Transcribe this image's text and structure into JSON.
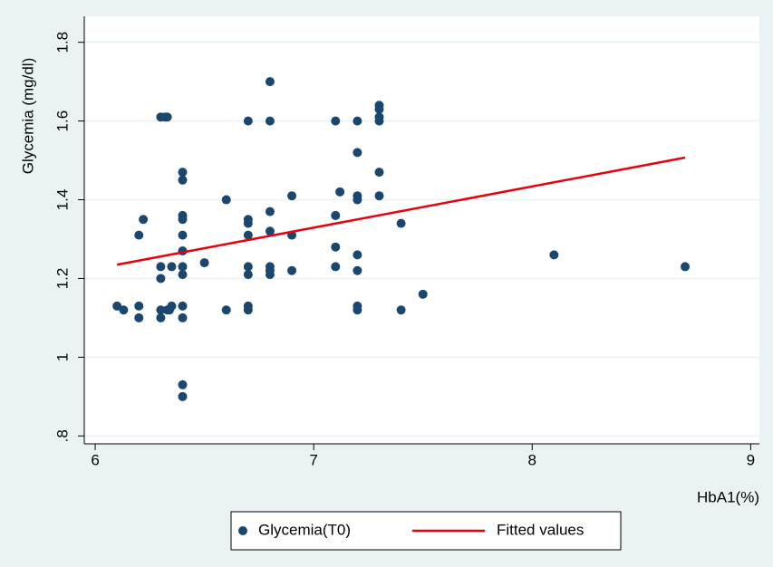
{
  "chart_data": {
    "type": "scatter",
    "xlabel": "HbA1(%)",
    "ylabel": "Glycemia (mg/dl)",
    "xlim": [
      5.95,
      9.04
    ],
    "ylim": [
      0.78,
      1.866
    ],
    "xticks": [
      6,
      7,
      8,
      9
    ],
    "yticks": [
      {
        "value": 0.8,
        "label": ".8"
      },
      1,
      1.2,
      1.4,
      1.6,
      1.8
    ],
    "grid": true,
    "legend": "bottom",
    "series": [
      {
        "name": "Glycemia(T0)",
        "type": "scatter",
        "color": "#1a476f",
        "x": [
          6.1,
          6.13,
          6.2,
          6.2,
          6.2,
          6.22,
          6.3,
          6.32,
          6.33,
          6.3,
          6.3,
          6.3,
          6.3,
          6.33,
          6.35,
          6.35,
          6.34,
          6.4,
          6.4,
          6.4,
          6.4,
          6.4,
          6.4,
          6.4,
          6.4,
          6.4,
          6.4,
          6.4,
          6.4,
          6.5,
          6.6,
          6.6,
          6.7,
          6.7,
          6.7,
          6.7,
          6.7,
          6.7,
          6.7,
          6.7,
          6.8,
          6.8,
          6.8,
          6.8,
          6.8,
          6.8,
          6.8,
          6.9,
          6.9,
          6.9,
          7.1,
          7.1,
          7.1,
          7.1,
          7.12,
          7.2,
          7.2,
          7.2,
          7.2,
          7.2,
          7.2,
          7.2,
          7.2,
          7.3,
          7.3,
          7.3,
          7.3,
          7.3,
          7.3,
          7.4,
          7.4,
          7.5,
          8.1,
          8.7
        ],
        "values": [
          1.13,
          1.12,
          1.31,
          1.13,
          1.1,
          1.35,
          1.61,
          1.61,
          1.61,
          1.23,
          1.2,
          1.12,
          1.1,
          1.12,
          1.13,
          1.23,
          1.12,
          1.47,
          1.45,
          1.36,
          1.35,
          1.31,
          1.27,
          1.23,
          1.21,
          1.13,
          1.1,
          0.93,
          0.9,
          1.24,
          1.4,
          1.12,
          1.6,
          1.35,
          1.34,
          1.31,
          1.23,
          1.21,
          1.13,
          1.12,
          1.7,
          1.6,
          1.37,
          1.32,
          1.23,
          1.22,
          1.21,
          1.41,
          1.31,
          1.22,
          1.6,
          1.36,
          1.28,
          1.23,
          1.42,
          1.6,
          1.52,
          1.41,
          1.4,
          1.26,
          1.22,
          1.13,
          1.12,
          1.64,
          1.63,
          1.61,
          1.6,
          1.47,
          1.41,
          1.34,
          1.12,
          1.16,
          1.26,
          1.23
        ]
      },
      {
        "name": "Fitted values",
        "type": "line",
        "color": "#e8000b",
        "x": [
          6.1,
          8.7
        ],
        "values": [
          1.235,
          1.507
        ]
      }
    ]
  }
}
